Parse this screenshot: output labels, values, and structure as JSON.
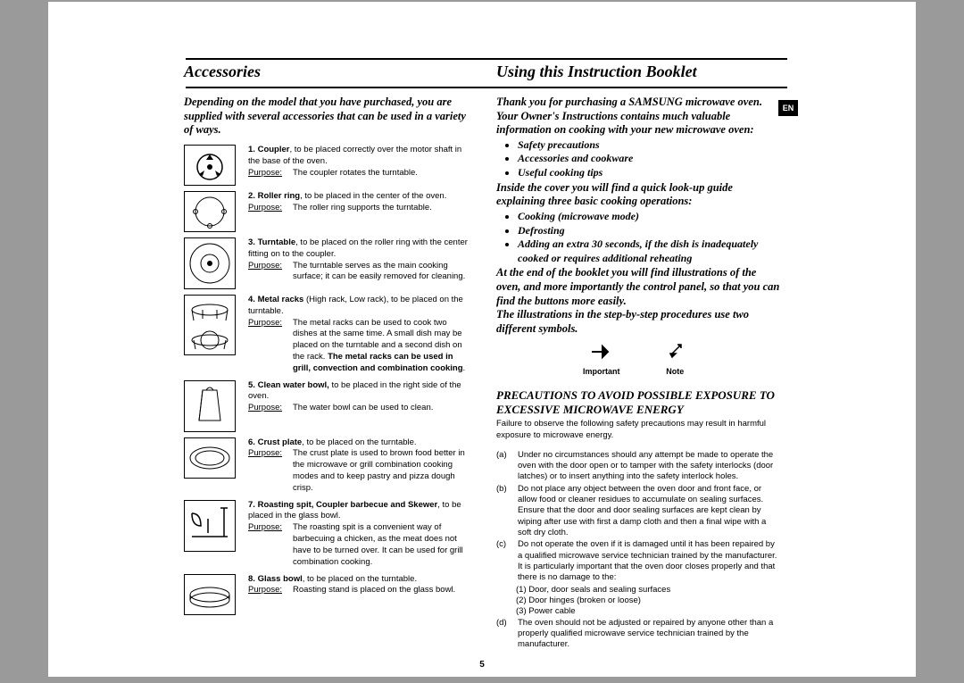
{
  "pageNumber": "5",
  "langBadge": "EN",
  "left": {
    "heading": "Accessories",
    "intro": "Depending on the model that you have purchased, you are supplied with several accessories that can be used in a variety of ways.",
    "purposeLabel": "Purpose:",
    "items": [
      {
        "num": "1.",
        "name": "Coupler",
        "tail": ", to be placed correctly over the motor shaft in the base of the oven.",
        "purpose": "The coupler rotates the turntable."
      },
      {
        "num": "2.",
        "name": "Roller ring",
        "tail": ", to be placed in the center of the oven.",
        "purpose": "The roller ring supports the turntable."
      },
      {
        "num": "3.",
        "name": "Turntable",
        "tail": ", to be placed on the roller ring with the center fitting on to the coupler.",
        "purpose": "The turntable serves as the main cooking surface; it can be easily removed for cleaning."
      },
      {
        "num": "4.",
        "name": "Metal racks",
        "tail": " (High rack, Low rack), to be placed on the turntable.",
        "purpose": "The metal racks can be used to cook two dishes at the same time. A small dish may be placed on the turntable and a second dish on the rack. <b>The metal racks can be used in grill, convection and combination cooking</b>."
      },
      {
        "num": "5.",
        "name": "Clean water bowl,",
        "tail": " to be placed in the right side of the oven.",
        "purpose": "The water bowl can be used to clean."
      },
      {
        "num": "6.",
        "name": "Crust plate",
        "tail": ", to be placed on the turntable.",
        "purpose": "The crust plate is used to brown food better in the microwave or grill combination cooking modes and to keep pastry and pizza dough crisp."
      },
      {
        "num": "7.",
        "name": "Roasting spit, Coupler barbecue and Skewer",
        "tail": ", to be placed in the glass bowl.",
        "purpose": "The roasting spit is a convenient way of barbecuing a chicken, as the meat does not have to be turned over. It can be used for grill combination cooking."
      },
      {
        "num": "8.",
        "name": "Glass bowl",
        "tail": ", to be placed on the turntable.",
        "purpose": "Roasting stand is placed on the glass bowl."
      }
    ]
  },
  "right": {
    "heading": "Using this Instruction Booklet",
    "intro1": "Thank you for purchasing a SAMSUNG microwave oven. Your Owner's Instructions contains much valuable information on cooking with your new microwave oven:",
    "bullets1": [
      "Safety precautions",
      "Accessories and cookware",
      "Useful cooking tips"
    ],
    "intro2": "Inside the cover you will find a quick look-up guide explaining three basic cooking operations:",
    "bullets2": [
      "Cooking (microwave mode)",
      "Defrosting",
      "Adding an extra 30 seconds, if the dish is inadequately cooked or requires additional reheating"
    ],
    "intro3": "At the end of the booklet you will find illustrations of the oven, and more importantly the control panel, so that you can find the buttons more easily.",
    "intro4": "The illustrations in the step-by-step procedures use two different symbols.",
    "symLabels": [
      "Important",
      "Note"
    ],
    "precTitle": "PRECAUTIONS TO AVOID POSSIBLE EXPOSURE TO EXCESSIVE MICROWAVE ENERGY",
    "precIntro": "Failure to observe the following safety precautions may result in harmful exposure to microwave energy.",
    "precItems": [
      {
        "letter": "(a)",
        "text": "Under no circumstances should any attempt be made to operate the oven with the door open or to tamper with the safety interlocks (door latches) or to insert anything into the safety interlock holes."
      },
      {
        "letter": "(b)",
        "text": "Do not place any object between the oven door and front face, or allow food or cleaner residues to accumulate on sealing surfaces. Ensure that the door and door sealing surfaces are kept clean by wiping after use with first a damp cloth and then a final wipe with a soft dry cloth."
      },
      {
        "letter": "(c)",
        "text": "Do not operate the oven if it is damaged until it has been repaired by a qualified microwave service technician trained by the manufacturer.",
        "extra": "It is particularly important that the oven door closes properly and that there is no damage to the:",
        "sub": [
          "(1) Door, door seals and sealing surfaces",
          "(2) Door hinges (broken or loose)",
          "(3) Power cable"
        ]
      },
      {
        "letter": "(d)",
        "text": "The oven should not be adjusted or repaired by anyone other than a properly qualified microwave service technician trained by the manufacturer."
      }
    ]
  }
}
